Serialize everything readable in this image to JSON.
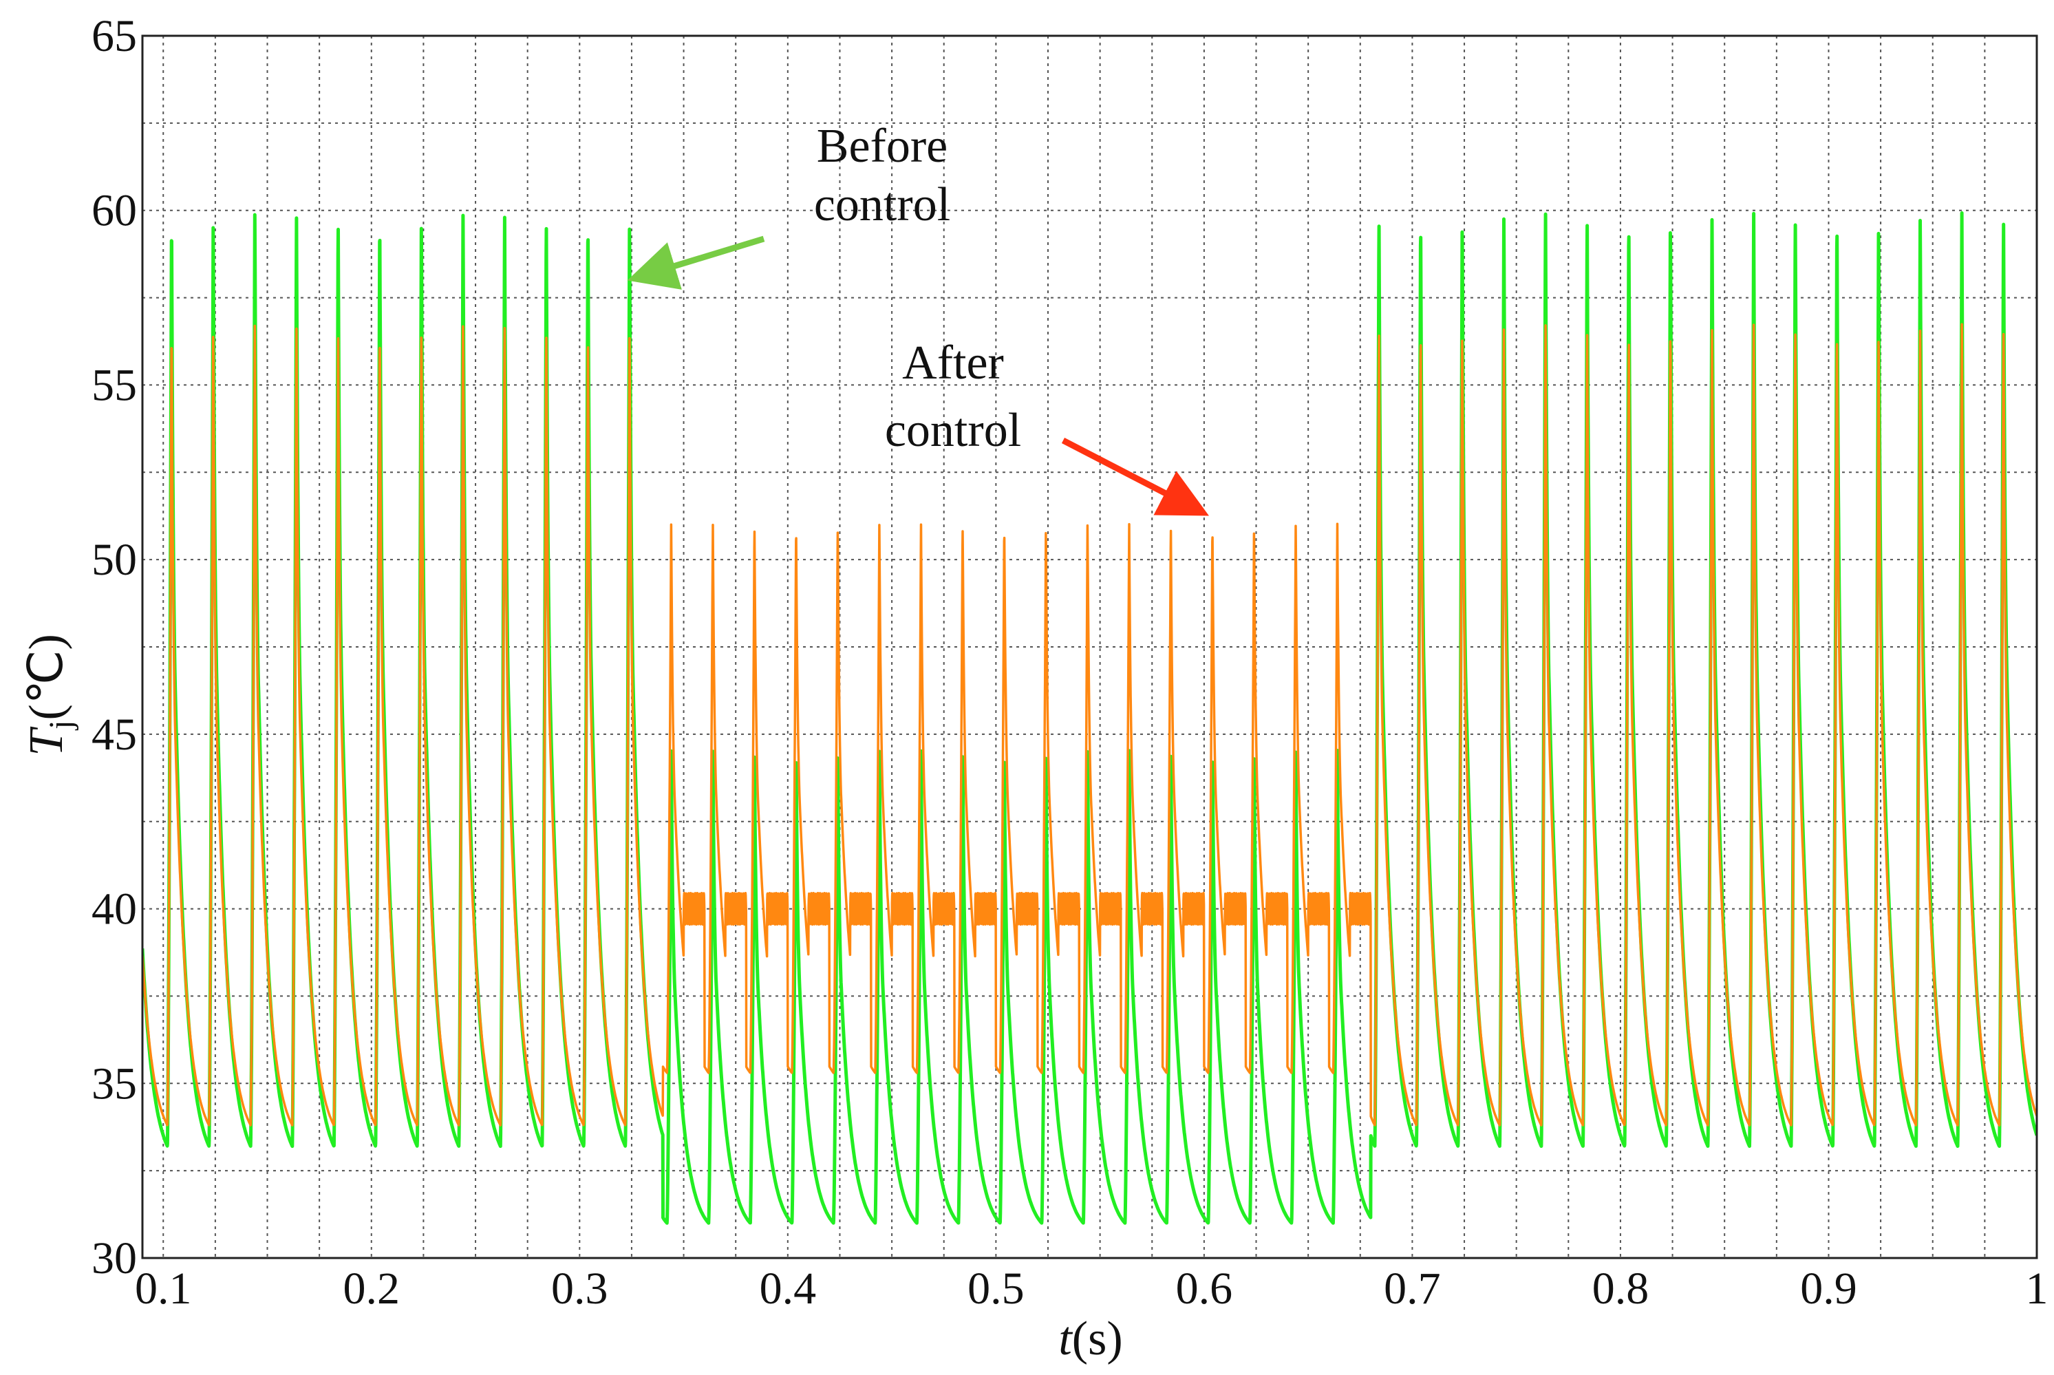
{
  "chart_data": {
    "type": "line",
    "title": "",
    "xlabel_italic": "t",
    "xlabel_unit": "(s)",
    "ylabel_italic": "T",
    "ylabel_sub": "j",
    "ylabel_unit": "(℃)",
    "xlim": [
      0.09,
      1.0
    ],
    "ylim": [
      30,
      65
    ],
    "x_ticks": [
      0.1,
      0.2,
      0.3,
      0.4,
      0.5,
      0.6,
      0.7,
      0.8,
      0.9,
      1.0
    ],
    "x_tick_labels": [
      "0.1",
      "0.2",
      "0.3",
      "0.4",
      "0.5",
      "0.6",
      "0.7",
      "0.8",
      "0.9",
      "1"
    ],
    "y_ticks": [
      30,
      35,
      40,
      45,
      50,
      55,
      60,
      65
    ],
    "y_tick_labels": [
      "30",
      "35",
      "40",
      "45",
      "50",
      "55",
      "60",
      "65"
    ],
    "grid": true,
    "period_s": 0.02,
    "series": [
      {
        "name": "Before control",
        "color": "#22ee22",
        "segments": [
          {
            "t_start": 0.09,
            "t_end": 0.34,
            "peak": 60,
            "trough": 33.2,
            "plateau": null
          },
          {
            "t_start": 0.34,
            "t_end": 0.68,
            "peak": 44.6,
            "trough": 31.0,
            "plateau": null
          },
          {
            "t_start": 0.68,
            "t_end": 1.0,
            "peak": 60,
            "trough": 33.2,
            "plateau": null
          }
        ]
      },
      {
        "name": "After control",
        "color": "#ff8811",
        "segments": [
          {
            "t_start": 0.09,
            "t_end": 0.34,
            "peak": 56.8,
            "trough": 33.8,
            "plateau": null
          },
          {
            "t_start": 0.34,
            "t_end": 0.68,
            "peak": 51.1,
            "trough": 35.3,
            "plateau": 40
          },
          {
            "t_start": 0.68,
            "t_end": 1.0,
            "peak": 56.8,
            "trough": 33.8,
            "plateau": null
          }
        ]
      }
    ],
    "annotations": [
      {
        "name": "before",
        "line1": "Before",
        "line2": "control",
        "arrow_color": "#77cc44"
      },
      {
        "name": "after",
        "line1": "After",
        "line2": "control",
        "arrow_color": "#ff3311"
      }
    ]
  }
}
